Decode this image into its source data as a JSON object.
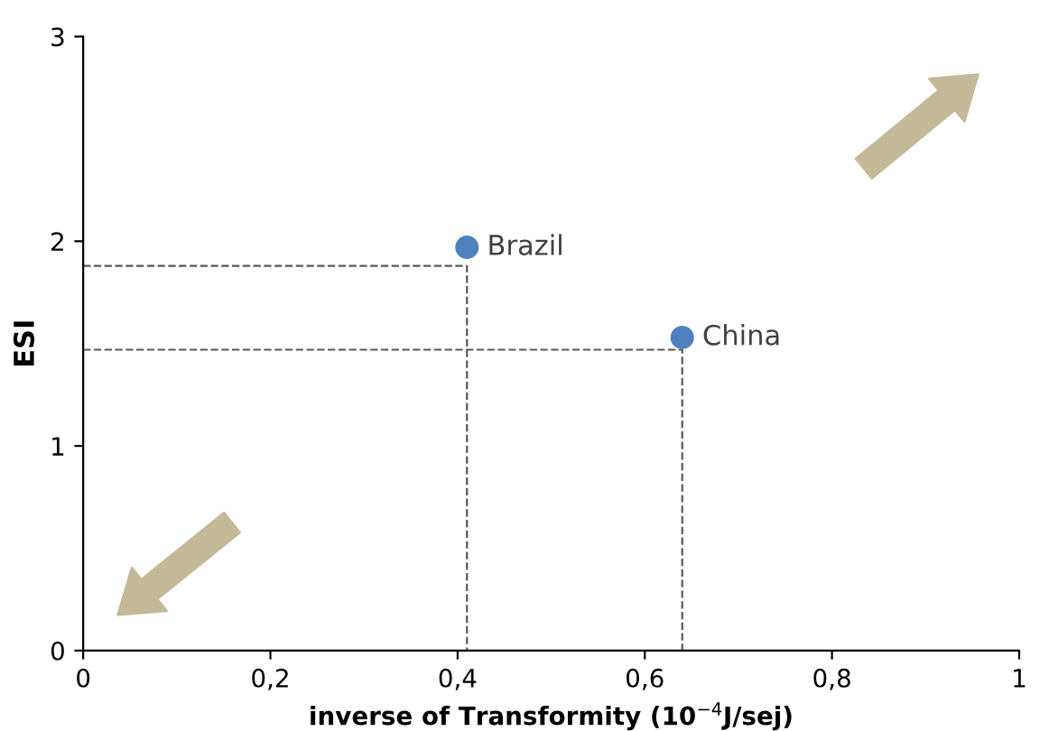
{
  "chart_data": {
    "type": "scatter",
    "xlabel": "inverse of Transformity (10$^{−4}$J/sej)",
    "ylabel": "ESI",
    "xlim": [
      0,
      1
    ],
    "ylim": [
      0,
      3
    ],
    "xticks": [
      0,
      {
        "value": 0.2,
        "label": "0,2"
      },
      {
        "value": 0.4,
        "label": "0,4"
      },
      {
        "value": 0.6,
        "label": "0,6"
      },
      {
        "value": 0.8,
        "label": "0,8"
      },
      1
    ],
    "yticks": [
      0,
      1,
      2,
      3
    ],
    "grid": false,
    "legend": false,
    "series": [
      {
        "name": "Brazil",
        "marker": "circle",
        "color": "#4f81bd",
        "x": [
          0.41
        ],
        "values": [
          1.97
        ]
      },
      {
        "name": "China",
        "marker": "circle",
        "color": "#4f81bd",
        "x": [
          0.64
        ],
        "values": [
          1.53
        ]
      },
      {
        "type": "line",
        "marker": "none",
        "line_style": "dashed",
        "color": "#595959",
        "x": [
          0,
          0.41,
          0.41
        ],
        "values": [
          1.88,
          1.88,
          0
        ]
      },
      {
        "type": "line",
        "marker": "none",
        "line_style": "dashed",
        "color": "#595959",
        "x": [
          0,
          0.64,
          0.64
        ],
        "values": [
          1.47,
          1.47,
          0
        ]
      }
    ]
  }
}
